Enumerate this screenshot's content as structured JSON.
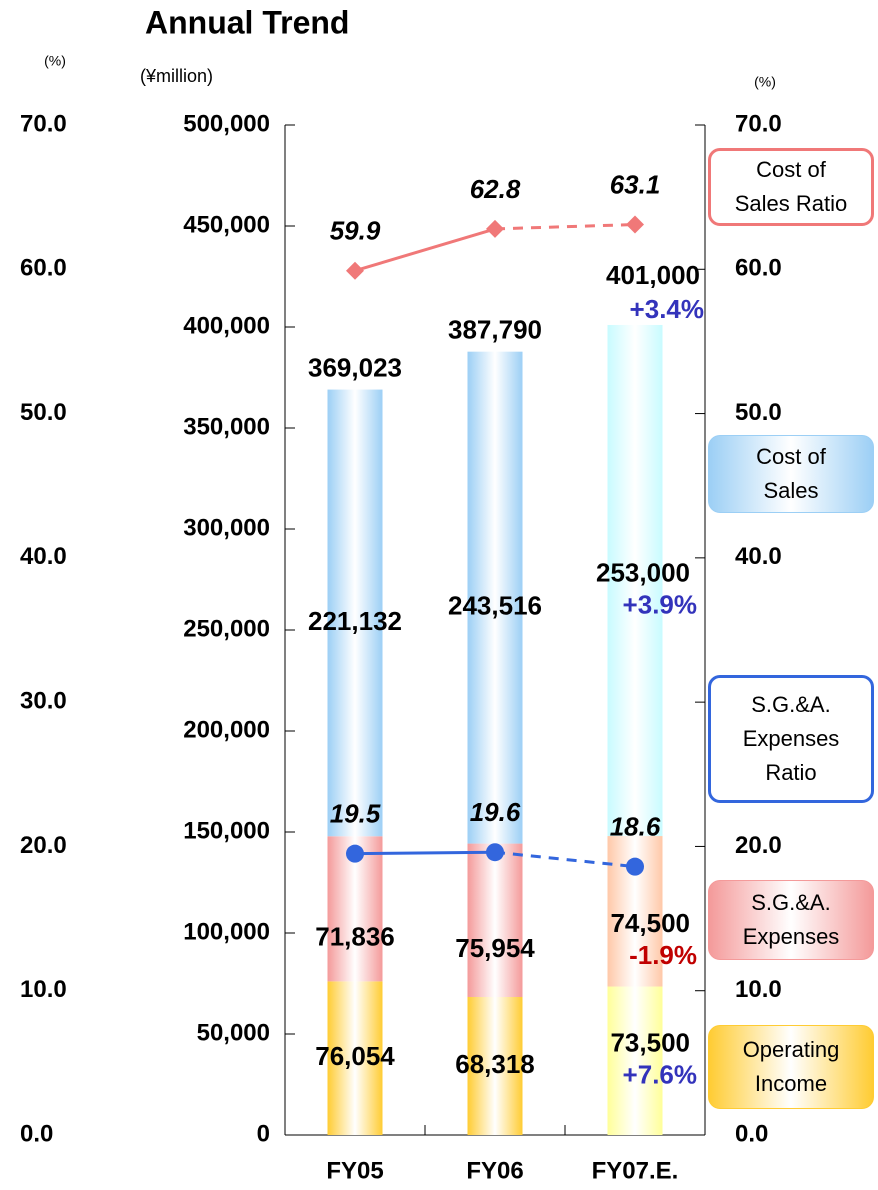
{
  "chart_data": {
    "type": "bar",
    "title": "Annual Trend",
    "y_label": "(¥million)",
    "y2_label": "(%)",
    "categories": [
      "FY05",
      "FY06",
      "FY07.E."
    ],
    "estimated": [
      false,
      false,
      true
    ],
    "stacked": true,
    "series": [
      {
        "name": "Operating Income",
        "color": "#ffcc33",
        "estimate_color": "#ffff99",
        "values": [
          76054,
          68318,
          73500
        ],
        "value_labels": [
          "76,054",
          "68,318",
          "73,500"
        ],
        "change_labels": [
          null,
          null,
          "+7.6%"
        ]
      },
      {
        "name": "S.G.&A. Expenses",
        "color": "#f49a9a",
        "estimate_color": "#ffc8a8",
        "values": [
          71836,
          75954,
          74500
        ],
        "value_labels": [
          "71,836",
          "75,954",
          "74,500"
        ],
        "change_labels": [
          null,
          null,
          "-1.9%"
        ]
      },
      {
        "name": "Cost of Sales",
        "color": "#9ccff5",
        "estimate_color": "#c8fbff",
        "values": [
          221132,
          243516,
          253000
        ],
        "value_labels": [
          "221,132",
          "243,516",
          "253,000"
        ],
        "change_labels": [
          null,
          null,
          "+3.9%"
        ]
      },
      {
        "name": "Cost of Sales Ratio",
        "type": "line",
        "axis": "y2",
        "color": "#f07878",
        "marker": "diamond",
        "values": [
          59.9,
          62.8,
          63.1
        ]
      },
      {
        "name": "S.G.&A. Expenses Ratio",
        "type": "line",
        "axis": "y2",
        "color": "#3366dd",
        "marker": "circle",
        "values": [
          19.5,
          19.6,
          18.6
        ]
      }
    ],
    "totals": [
      369023,
      387790,
      401000
    ],
    "total_labels": [
      "369,023",
      "387,790",
      "401,000"
    ],
    "total_change_labels": [
      null,
      null,
      "+3.4%"
    ],
    "ylim": [
      0,
      500000
    ],
    "yticks": [
      0,
      {
        "value": 50000,
        "label": "50,000"
      },
      {
        "value": 100000,
        "label": "100,000"
      },
      {
        "value": 150000,
        "label": "150,000"
      },
      {
        "value": 200000,
        "label": "200,000"
      },
      {
        "value": 250000,
        "label": "250,000"
      },
      {
        "value": 300000,
        "label": "300,000"
      },
      {
        "value": 350000,
        "label": "350,000"
      },
      {
        "value": 400000,
        "label": "400,000"
      },
      {
        "value": 450000,
        "label": "450,000"
      },
      {
        "value": 500000,
        "label": "500,000"
      }
    ],
    "y2lim": [
      0,
      70
    ],
    "y2ticks": [
      {
        "value": 0,
        "label": "0.0"
      },
      {
        "value": 10,
        "label": "10.0"
      },
      {
        "value": 20,
        "label": "20.0"
      },
      {
        "value": 30,
        "label": "30.0"
      },
      {
        "value": 40,
        "label": "40.0"
      },
      {
        "value": 50,
        "label": "50.0"
      },
      {
        "value": 60,
        "label": "60.0"
      },
      {
        "value": 70,
        "label": "70.0"
      }
    ]
  }
}
